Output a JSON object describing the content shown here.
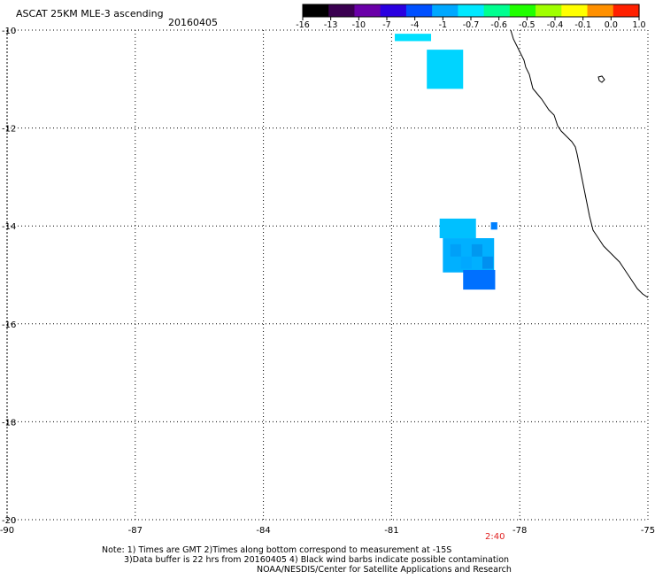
{
  "header": {
    "title": "ASCAT 25KM MLE-3 ascending",
    "date": "20160405"
  },
  "colorbar": {
    "labels": [
      "-16",
      "-13",
      "-10",
      "-7",
      "-4",
      "-1",
      "-0.7",
      "-0.6",
      "-0.5",
      "-0.4",
      "-0.1",
      "0.0",
      "1.0"
    ],
    "colors": [
      "#000000",
      "#3a0050",
      "#6a00a8",
      "#2a00e0",
      "#0050ff",
      "#00a8ff",
      "#00e8ff",
      "#00ff90",
      "#20ff00",
      "#a0ff00",
      "#ffff00",
      "#ff9000",
      "#ff2000"
    ]
  },
  "map": {
    "lon_ticks": [
      "-90",
      "-87",
      "-84",
      "-81",
      "-78",
      "-75"
    ],
    "lat_ticks": [
      "-10",
      "-12",
      "-14",
      "-16",
      "-18",
      "-20"
    ],
    "lon_range": [
      -90,
      -75
    ],
    "lat_range": [
      -20,
      -10
    ],
    "gridlines": true,
    "gridline_style": "dotted",
    "coastline": "western South America (Peru)",
    "cells": [
      {
        "lon": -80.5,
        "lat": -10.15,
        "value": "-0.7",
        "color": "#00e0ff",
        "w": 0.85,
        "h": 0.15
      },
      {
        "lon": -79.75,
        "lat": -10.8,
        "value": "-0.7",
        "color": "#00d4ff",
        "w": 0.85,
        "h": 0.8
      },
      {
        "lon": -79.45,
        "lat": -14.05,
        "value": "-1",
        "color": "#00c0ff",
        "w": 0.85,
        "h": 0.4
      },
      {
        "lon": -79.2,
        "lat": -14.6,
        "value": "-1",
        "color": "#00b0ff",
        "w": 1.2,
        "h": 0.7
      },
      {
        "lon": -78.95,
        "lat": -15.1,
        "value": "-4",
        "color": "#0070ff",
        "w": 0.75,
        "h": 0.4
      },
      {
        "lon": -79.5,
        "lat": -14.5,
        "value": "-1",
        "color": "#00a0f8",
        "w": 0.25,
        "h": 0.25
      },
      {
        "lon": -79.0,
        "lat": -14.5,
        "value": "-1",
        "color": "#0098f0",
        "w": 0.25,
        "h": 0.25
      },
      {
        "lon": -78.75,
        "lat": -14.75,
        "value": "-1",
        "color": "#0090f0",
        "w": 0.25,
        "h": 0.25
      },
      {
        "lon": -79.25,
        "lat": -14.75,
        "value": "-1",
        "color": "#00a8ff",
        "w": 0.25,
        "h": 0.25
      },
      {
        "lon": -78.6,
        "lat": -14.0,
        "value": "-4",
        "color": "#0080ff",
        "w": 0.15,
        "h": 0.15
      }
    ]
  },
  "footer": {
    "time_label": "2:40",
    "note_line1": "Note: 1) Times are GMT 2)Times along bottom correspond to measurement at -15S",
    "note_line2": "3)Data buffer is 22 hrs from 20160405 4) Black wind barbs indicate possible contamination",
    "note_line3": "NOAA/NESDIS/Center for Satellite Applications and Research"
  }
}
